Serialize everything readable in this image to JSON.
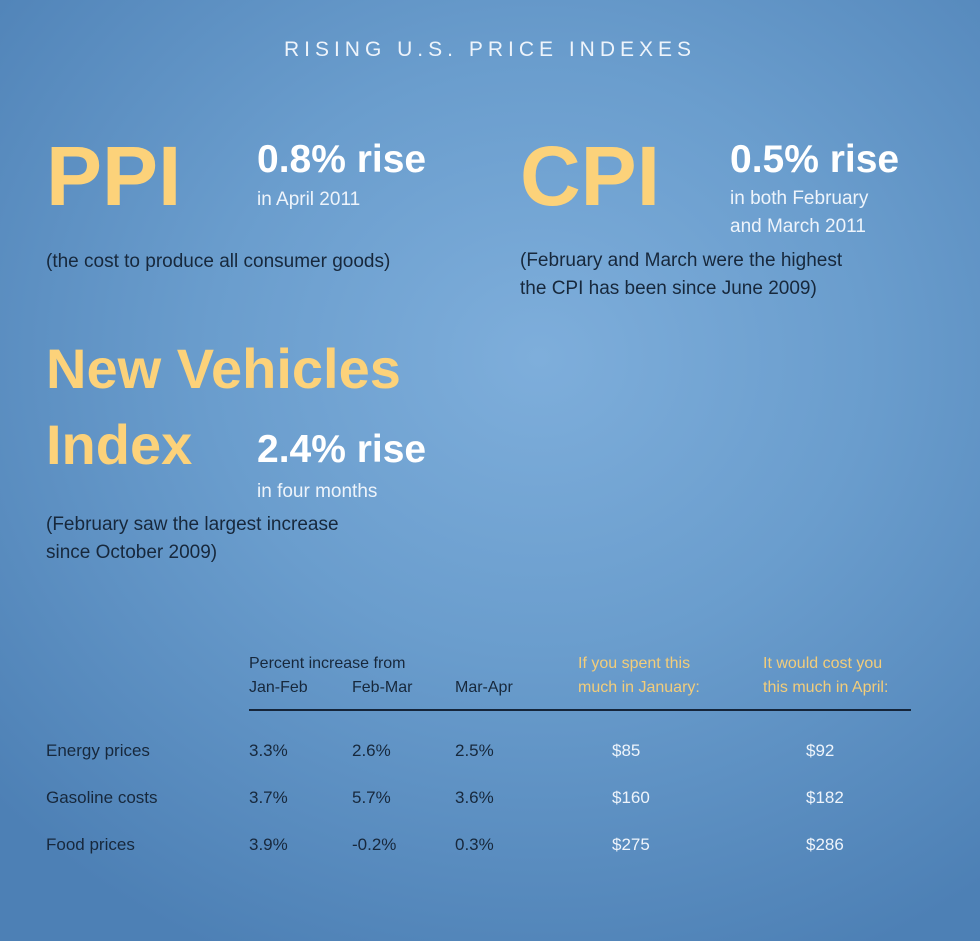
{
  "title": "RISING U.S. PRICE INDEXES",
  "colors": {
    "accent": "#fcd27a",
    "background": "#6a9dcd",
    "dark_text": "#17283c"
  },
  "ppi": {
    "name": "PPI",
    "rise": "0.8% rise",
    "period": "in April 2011",
    "note": "(the cost to produce all consumer goods)"
  },
  "cpi": {
    "name": "CPI",
    "rise": "0.5% rise",
    "period_line1": "in both February",
    "period_line2": "and March 2011",
    "note_line1": "(February and March were the highest",
    "note_line2": "the CPI has been since June 2009)"
  },
  "vehicles": {
    "name_line1": "New Vehicles",
    "name_line2": "Index",
    "rise": "2.4% rise",
    "period": "in four months",
    "note_line1": "(February saw the largest increase",
    "note_line2": "since October 2009)"
  },
  "table": {
    "group_header": "Percent increase from",
    "columns": [
      "Jan-Feb",
      "Feb-Mar",
      "Mar-Apr"
    ],
    "spent_header_line1": "If you spent this",
    "spent_header_line2": "much in January:",
    "cost_header_line1": "It would cost you",
    "cost_header_line2": "this much in April:",
    "rows": [
      {
        "label": "Energy prices",
        "values": [
          "3.3%",
          "2.6%",
          "2.5%"
        ],
        "january": "$85",
        "april": "$92"
      },
      {
        "label": "Gasoline costs",
        "values": [
          "3.7%",
          "5.7%",
          "3.6%"
        ],
        "january": "$160",
        "april": "$182"
      },
      {
        "label": "Food prices",
        "values": [
          "3.9%",
          "-0.2%",
          "0.3%"
        ],
        "january": "$275",
        "april": "$286"
      }
    ]
  }
}
